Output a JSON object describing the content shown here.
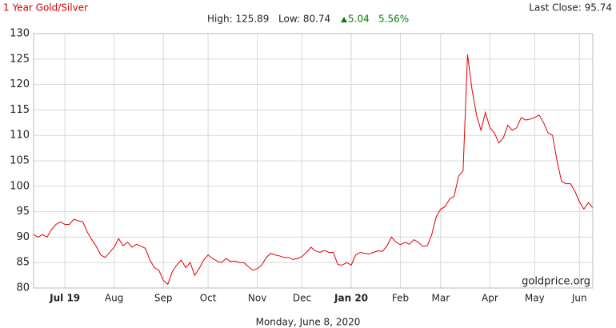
{
  "chart_data": {
    "type": "line",
    "title": "1 Year Gold/Silver",
    "last_close": "Last Close: 95.74",
    "high": "High: 125.89",
    "low": "Low: 80.74",
    "change": "5.04",
    "change_percent": "5.56%",
    "date": "Monday, June 8, 2020",
    "watermark": "goldprice.org",
    "categories": [
      null,
      null,
      null,
      null,
      null,
      null,
      null,
      "Jul 19",
      null,
      null,
      null,
      null,
      null,
      null,
      null,
      null,
      null,
      null,
      "Aug",
      null,
      null,
      null,
      null,
      null,
      null,
      null,
      null,
      null,
      null,
      "Sep",
      null,
      null,
      null,
      null,
      null,
      null,
      null,
      null,
      null,
      "Oct",
      null,
      null,
      null,
      null,
      null,
      null,
      null,
      null,
      null,
      null,
      "Nov",
      null,
      null,
      null,
      null,
      null,
      null,
      null,
      null,
      null,
      "Dec",
      null,
      null,
      null,
      null,
      null,
      null,
      null,
      null,
      null,
      null,
      "Jan 20",
      null,
      null,
      null,
      null,
      null,
      null,
      null,
      null,
      null,
      null,
      "Feb",
      null,
      null,
      null,
      null,
      null,
      null,
      null,
      null,
      "Mar",
      null,
      null,
      null,
      null,
      null,
      null,
      null,
      null,
      null,
      null,
      "Apr",
      null,
      null,
      null,
      null,
      null,
      null,
      null,
      null,
      null,
      "May",
      null,
      null,
      null,
      null,
      null,
      null,
      null,
      null,
      null,
      "Jun",
      null,
      null,
      null
    ],
    "values": [
      90.5,
      90,
      90.5,
      90,
      91.5,
      92.5,
      93,
      92.5,
      92.5,
      93.5,
      93.2,
      93,
      91,
      89.5,
      88.2,
      86.5,
      86,
      87,
      88,
      89.7,
      88.3,
      89,
      88,
      88.6,
      88.2,
      87.8,
      85.5,
      84,
      83.5,
      81.5,
      80.74,
      83.2,
      84.5,
      85.5,
      84,
      85,
      82.5,
      83.8,
      85.5,
      86.5,
      85.8,
      85.3,
      85,
      85.8,
      85.2,
      85.3,
      85,
      85,
      84.2,
      83.5,
      83.8,
      84.5,
      86,
      86.8,
      86.5,
      86.3,
      86,
      86,
      85.6,
      85.8,
      86.2,
      87,
      88,
      87.3,
      87,
      87.4,
      87,
      87,
      84.6,
      84.5,
      85,
      84.5,
      86.5,
      87,
      86.8,
      86.7,
      87,
      87.3,
      87.2,
      88.3,
      90,
      89,
      88.5,
      89,
      88.6,
      89.5,
      89,
      88.2,
      88.3,
      90.5,
      94,
      95.5,
      96,
      97.5,
      98,
      102,
      103,
      125.89,
      119,
      114,
      111,
      114.5,
      111.5,
      110.5,
      108.5,
      109.5,
      112,
      111,
      111.5,
      113.5,
      113,
      113.2,
      113.5,
      114,
      112.5,
      110.5,
      110,
      105,
      101,
      100.5,
      100.5,
      99,
      97,
      95.5,
      96.8,
      95.74
    ],
    "color": "#e00000",
    "change_color": "#008000",
    "title_color": "#d00000",
    "ylim": [
      80,
      130
    ],
    "yticks": [
      80,
      85,
      90,
      95,
      100,
      105,
      110,
      115,
      120,
      125,
      130
    ],
    "grid": true
  }
}
